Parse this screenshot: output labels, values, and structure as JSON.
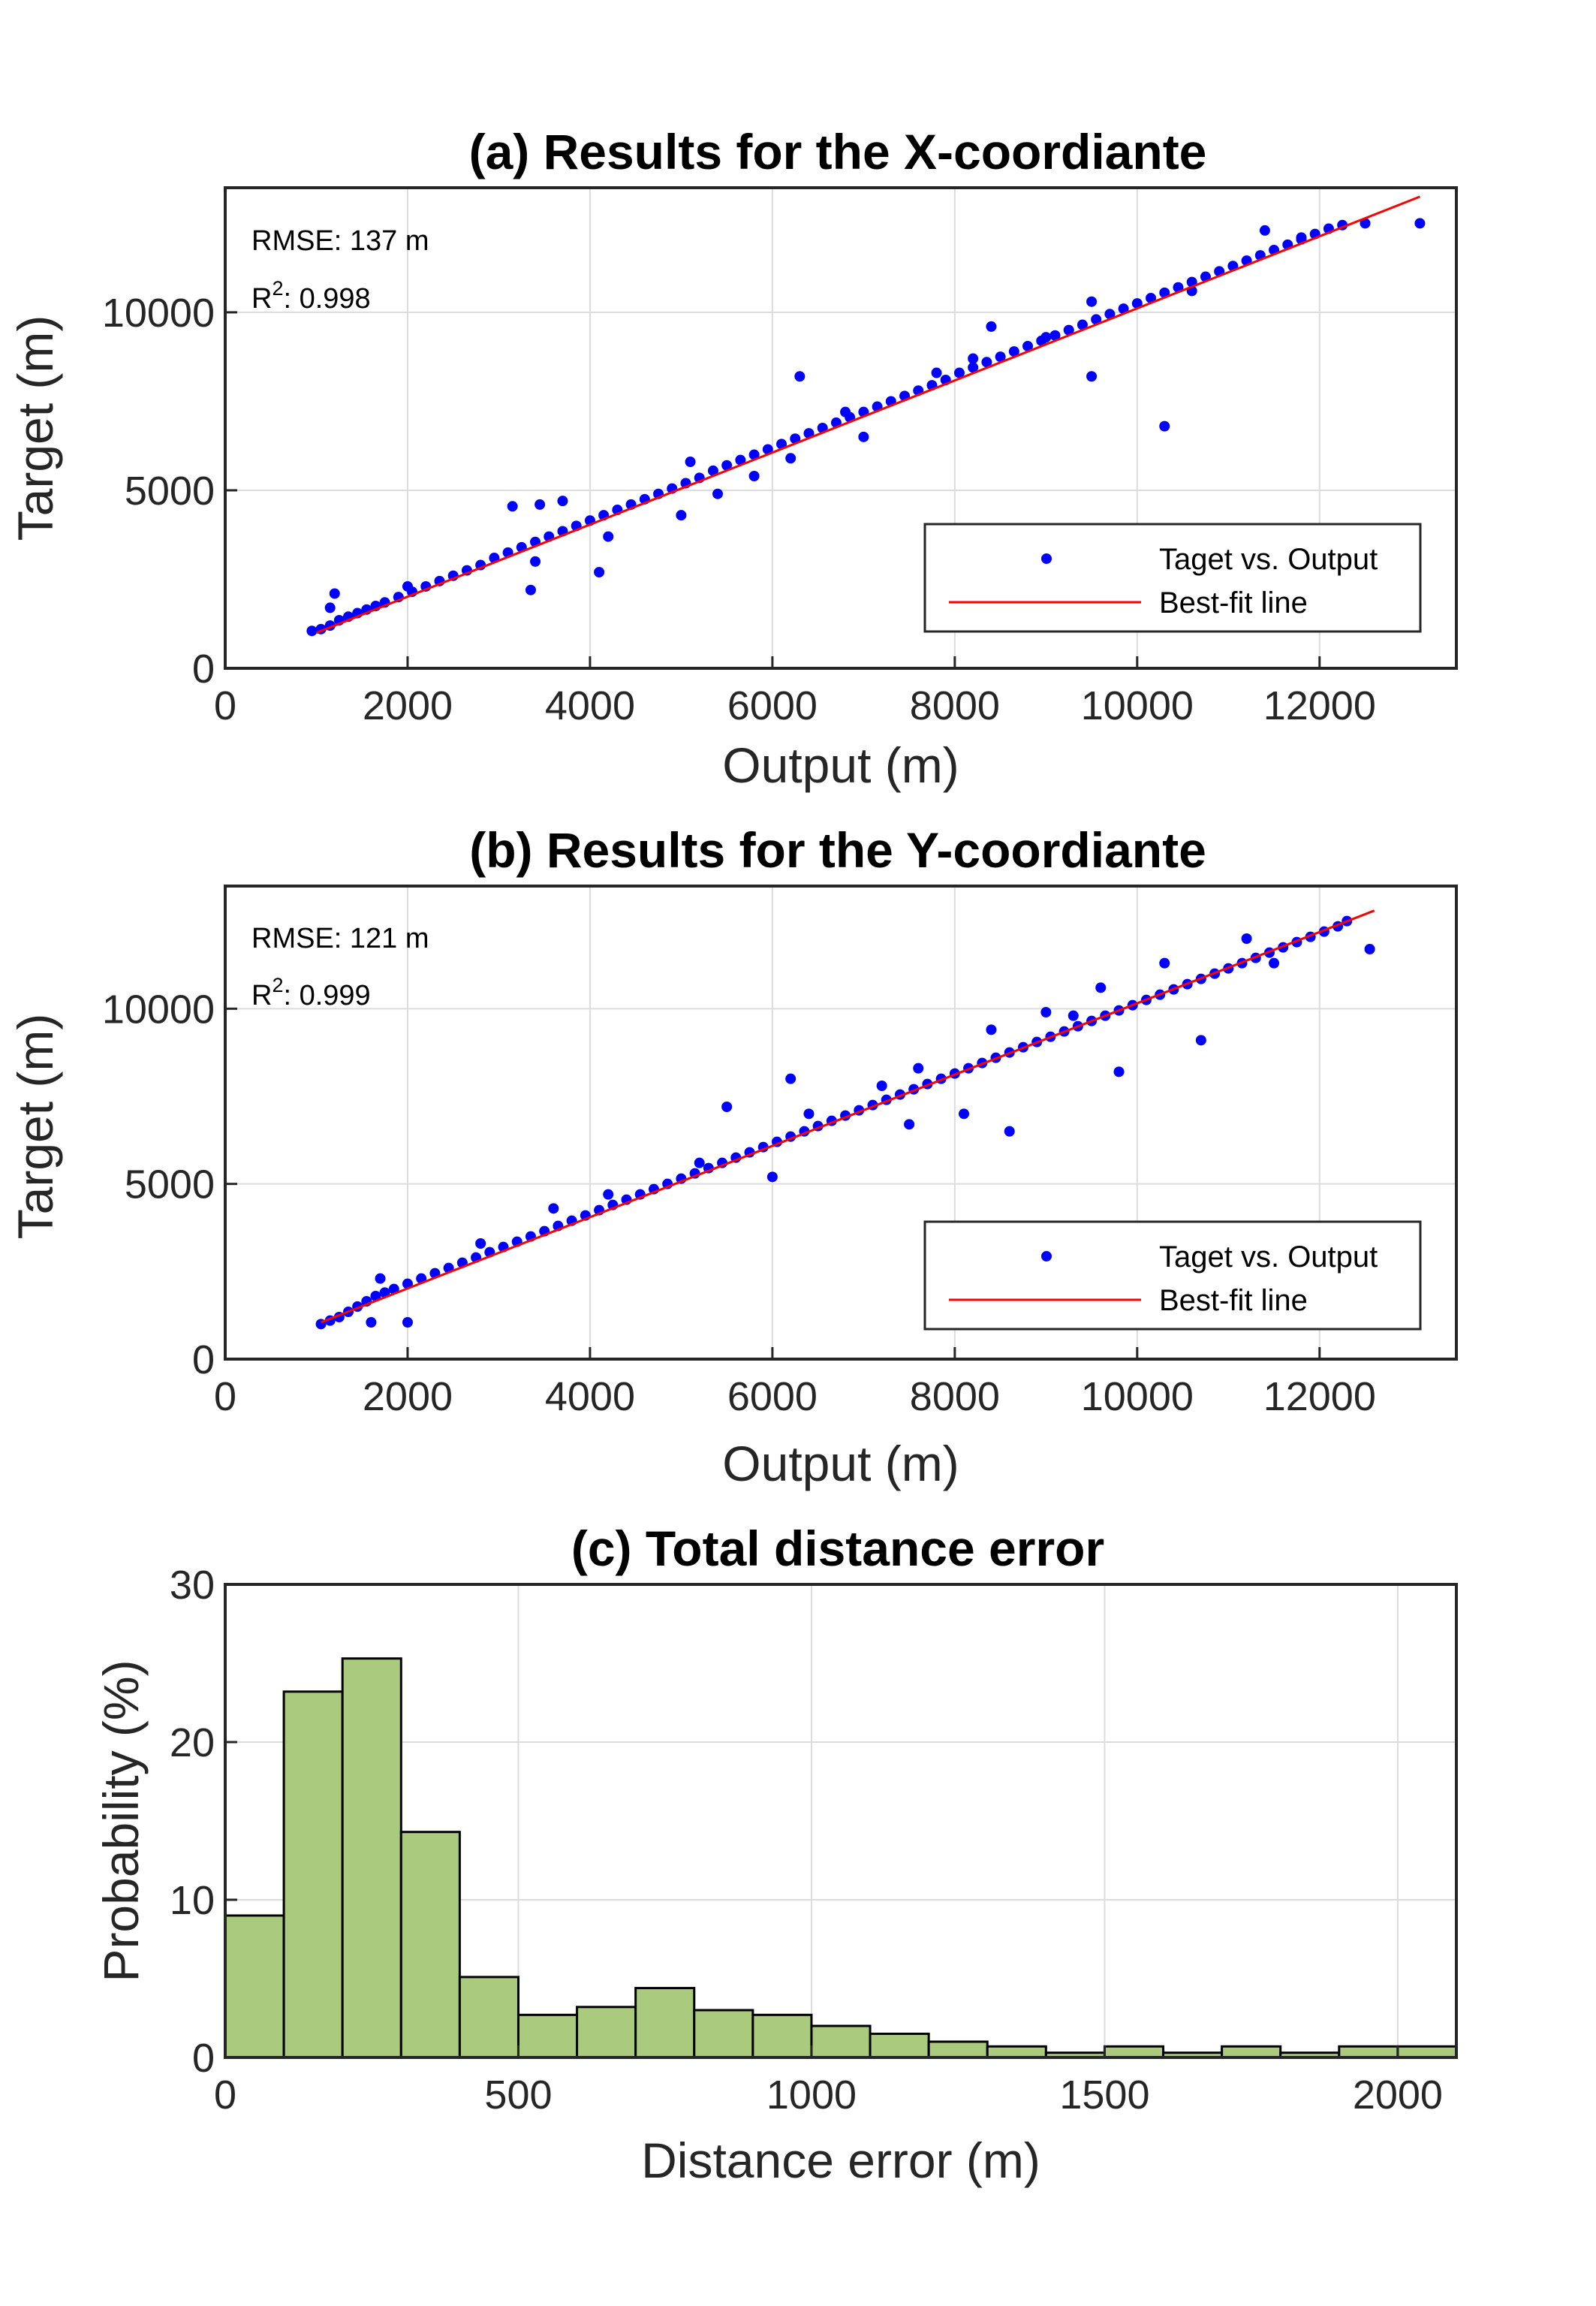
{
  "colors": {
    "scatter": "#0000ff",
    "fit_line": "#ff0000",
    "bar_fill": "#aacb7d",
    "bar_edge": "#000000",
    "grid": "#dcdcdc",
    "axes": "#262626"
  },
  "chart_data": [
    {
      "type": "scatter",
      "title": "(a) Results for the X-coordiante",
      "xlabel": "Output (m)",
      "ylabel": "Target (m)",
      "xlim": [
        0,
        13500
      ],
      "ylim": [
        0,
        13500
      ],
      "xticks": [
        0,
        2000,
        4000,
        6000,
        8000,
        10000,
        12000
      ],
      "yticks": [
        0,
        5000,
        10000
      ],
      "grid": true,
      "annotations": {
        "rmse": "RMSE: 137 m",
        "r2_base": "R",
        "r2_exp": "2",
        "r2_value": ": 0.998"
      },
      "legend": {
        "position": "lower-right",
        "scatter_label": "Taget vs. Output",
        "line_label": "Best-fit line"
      },
      "fit_line": {
        "x": [
          1000,
          13100
        ],
        "y": [
          1000,
          13250
        ]
      },
      "series": [
        {
          "name": "Taget vs. Output",
          "x": [
            950,
            1050,
            1150,
            1250,
            1350,
            1450,
            1550,
            1650,
            1750,
            1900,
            2050,
            2200,
            2350,
            2500,
            2650,
            2800,
            2950,
            3100,
            3250,
            3400,
            3550,
            3700,
            3850,
            4000,
            4150,
            4300,
            4450,
            4600,
            4750,
            4900,
            5050,
            5200,
            5350,
            5500,
            5650,
            5800,
            5950,
            6100,
            6250,
            6400,
            6550,
            6700,
            6850,
            7000,
            7150,
            7300,
            7450,
            7600,
            7750,
            7900,
            8050,
            8200,
            8350,
            8500,
            8650,
            8800,
            8950,
            9100,
            9250,
            9400,
            9550,
            9700,
            9850,
            10000,
            10150,
            10300,
            10450,
            10600,
            10750,
            10900,
            11050,
            11200,
            11350,
            11500,
            11650,
            11800,
            11950,
            12100,
            12250,
            12500,
            1200,
            3150,
            3350,
            3450,
            3700,
            4100,
            5100,
            6300,
            8400,
            9500,
            10300,
            11400,
            1150,
            2000,
            3400,
            4200,
            5000,
            5400,
            5800,
            6200,
            6800,
            7000,
            7800,
            8200,
            9000,
            9500,
            10600,
            11800,
            13100
          ],
          "y": [
            1050,
            1100,
            1200,
            1350,
            1450,
            1550,
            1650,
            1750,
            1850,
            2000,
            2150,
            2300,
            2450,
            2600,
            2750,
            2900,
            3100,
            3250,
            3400,
            3550,
            3700,
            3850,
            4000,
            4150,
            4300,
            4450,
            4600,
            4750,
            4900,
            5050,
            5200,
            5350,
            5550,
            5700,
            5850,
            6000,
            6150,
            6300,
            6450,
            6600,
            6750,
            6900,
            7050,
            7200,
            7350,
            7500,
            7650,
            7800,
            7950,
            8100,
            8300,
            8450,
            8600,
            8750,
            8900,
            9050,
            9200,
            9350,
            9500,
            9650,
            9800,
            9950,
            10100,
            10250,
            10400,
            10550,
            10700,
            10850,
            11000,
            11150,
            11300,
            11450,
            11600,
            11750,
            11900,
            12050,
            12200,
            12350,
            12450,
            12500,
            2100,
            4550,
            2200,
            4600,
            4700,
            2700,
            5800,
            8200,
            9600,
            8200,
            6800,
            12300,
            1700,
            2300,
            3000,
            3700,
            4300,
            4900,
            5400,
            5900,
            7200,
            6500,
            8300,
            8700,
            9300,
            10300,
            10600,
            12100,
            12500
          ]
        }
      ]
    },
    {
      "type": "scatter",
      "title": "(b) Results for the Y-coordiante",
      "xlabel": "Output (m)",
      "ylabel": "Target (m)",
      "xlim": [
        0,
        13500
      ],
      "ylim": [
        0,
        13500
      ],
      "xticks": [
        0,
        2000,
        4000,
        6000,
        8000,
        10000,
        12000
      ],
      "yticks": [
        0,
        5000,
        10000
      ],
      "grid": true,
      "annotations": {
        "rmse": "RMSE: 121 m",
        "r2_base": "R",
        "r2_exp": "2",
        "r2_value": ": 0.999"
      },
      "legend": {
        "position": "lower-right",
        "scatter_label": "Taget vs. Output",
        "line_label": "Best-fit line"
      },
      "fit_line": {
        "x": [
          1050,
          12600
        ],
        "y": [
          1050,
          12800
        ]
      },
      "series": [
        {
          "name": "Taget vs. Output",
          "x": [
            1050,
            1150,
            1250,
            1350,
            1450,
            1550,
            1650,
            1750,
            1850,
            2000,
            2150,
            2300,
            2450,
            2600,
            2750,
            2900,
            3050,
            3200,
            3350,
            3500,
            3650,
            3800,
            3950,
            4100,
            4250,
            4400,
            4550,
            4700,
            4850,
            5000,
            5150,
            5300,
            5450,
            5600,
            5750,
            5900,
            6050,
            6200,
            6350,
            6500,
            6650,
            6800,
            6950,
            7100,
            7250,
            7400,
            7550,
            7700,
            7850,
            8000,
            8150,
            8300,
            8450,
            8600,
            8750,
            8900,
            9050,
            9200,
            9350,
            9500,
            9650,
            9800,
            9950,
            10100,
            10250,
            10400,
            10550,
            10700,
            10850,
            11000,
            11150,
            11300,
            11450,
            11600,
            11750,
            11900,
            12050,
            12200,
            12300,
            12550,
            1600,
            2000,
            3600,
            5500,
            6000,
            6200,
            7500,
            8100,
            8600,
            9300,
            9800,
            10700,
            11500,
            1700,
            2800,
            4200,
            5200,
            6400,
            7200,
            7600,
            8400,
            9000,
            9600,
            10300,
            11200
          ],
          "y": [
            1000,
            1100,
            1200,
            1350,
            1500,
            1650,
            1800,
            1900,
            2000,
            2150,
            2300,
            2450,
            2600,
            2750,
            2900,
            3050,
            3200,
            3350,
            3500,
            3650,
            3800,
            3950,
            4100,
            4250,
            4400,
            4550,
            4700,
            4850,
            5000,
            5150,
            5300,
            5450,
            5600,
            5750,
            5900,
            6050,
            6200,
            6350,
            6500,
            6650,
            6800,
            6950,
            7100,
            7250,
            7400,
            7550,
            7700,
            7850,
            8000,
            8150,
            8300,
            8450,
            8600,
            8750,
            8900,
            9050,
            9200,
            9350,
            9500,
            9650,
            9800,
            9950,
            10100,
            10250,
            10400,
            10550,
            10700,
            10850,
            11000,
            11150,
            11300,
            11450,
            11600,
            11750,
            11900,
            12050,
            12200,
            12350,
            12500,
            11700,
            1050,
            1050,
            4300,
            7200,
            5200,
            8000,
            6700,
            7000,
            6500,
            9800,
            8200,
            9100,
            11300,
            2300,
            3300,
            4700,
            5600,
            7000,
            7800,
            8300,
            9400,
            9900,
            10600,
            11300,
            12000
          ]
        }
      ]
    },
    {
      "type": "bar",
      "subtype": "histogram",
      "title": "(c) Total distance error",
      "xlabel": "Distance error (m)",
      "ylabel": "Probability (%)",
      "xlim": [
        0,
        2100
      ],
      "ylim": [
        0,
        30
      ],
      "xticks": [
        0,
        500,
        1000,
        1500,
        2000
      ],
      "yticks": [
        0,
        10,
        20,
        30
      ],
      "grid": true,
      "bin_width": 100,
      "bin_edges": [
        0,
        100,
        200,
        300,
        400,
        500,
        600,
        700,
        800,
        900,
        1000,
        1100,
        1200,
        1300,
        1400,
        1500,
        1600,
        1700,
        1800,
        1900,
        2000,
        2100
      ],
      "values": [
        9.0,
        23.2,
        25.3,
        14.3,
        5.1,
        2.7,
        3.2,
        4.4,
        3.0,
        2.7,
        2.0,
        1.5,
        1.0,
        0.7,
        0.3,
        0.7,
        0.3,
        0.7,
        0.3,
        0.7,
        0.7
      ]
    }
  ]
}
